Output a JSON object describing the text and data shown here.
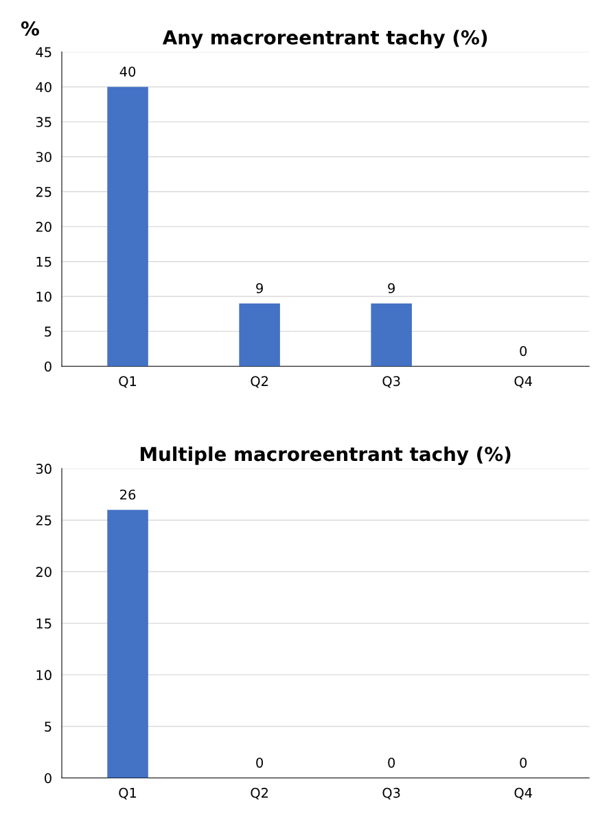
{
  "chart_data": [
    {
      "type": "bar",
      "title": "Any macroreentrant tachy (%)",
      "ylabel": "%",
      "categories": [
        "Q1",
        "Q2",
        "Q3",
        "Q4"
      ],
      "values": [
        40,
        9,
        9,
        0
      ],
      "color": "#4472c4",
      "ylim": [
        0,
        45
      ],
      "yticks": [
        0,
        5,
        10,
        15,
        20,
        25,
        30,
        35,
        40,
        45
      ],
      "grid": "y",
      "data_labels": true,
      "legend": false
    },
    {
      "type": "bar",
      "title": "Multiple macroreentrant tachy (%)",
      "categories": [
        "Q1",
        "Q2",
        "Q3",
        "Q4"
      ],
      "values": [
        26,
        0,
        0,
        0
      ],
      "color": "#4472c4",
      "ylim": [
        0,
        30
      ],
      "yticks": [
        0,
        5,
        10,
        15,
        20,
        25,
        30
      ],
      "grid": "y",
      "data_labels": true,
      "legend": false
    }
  ]
}
